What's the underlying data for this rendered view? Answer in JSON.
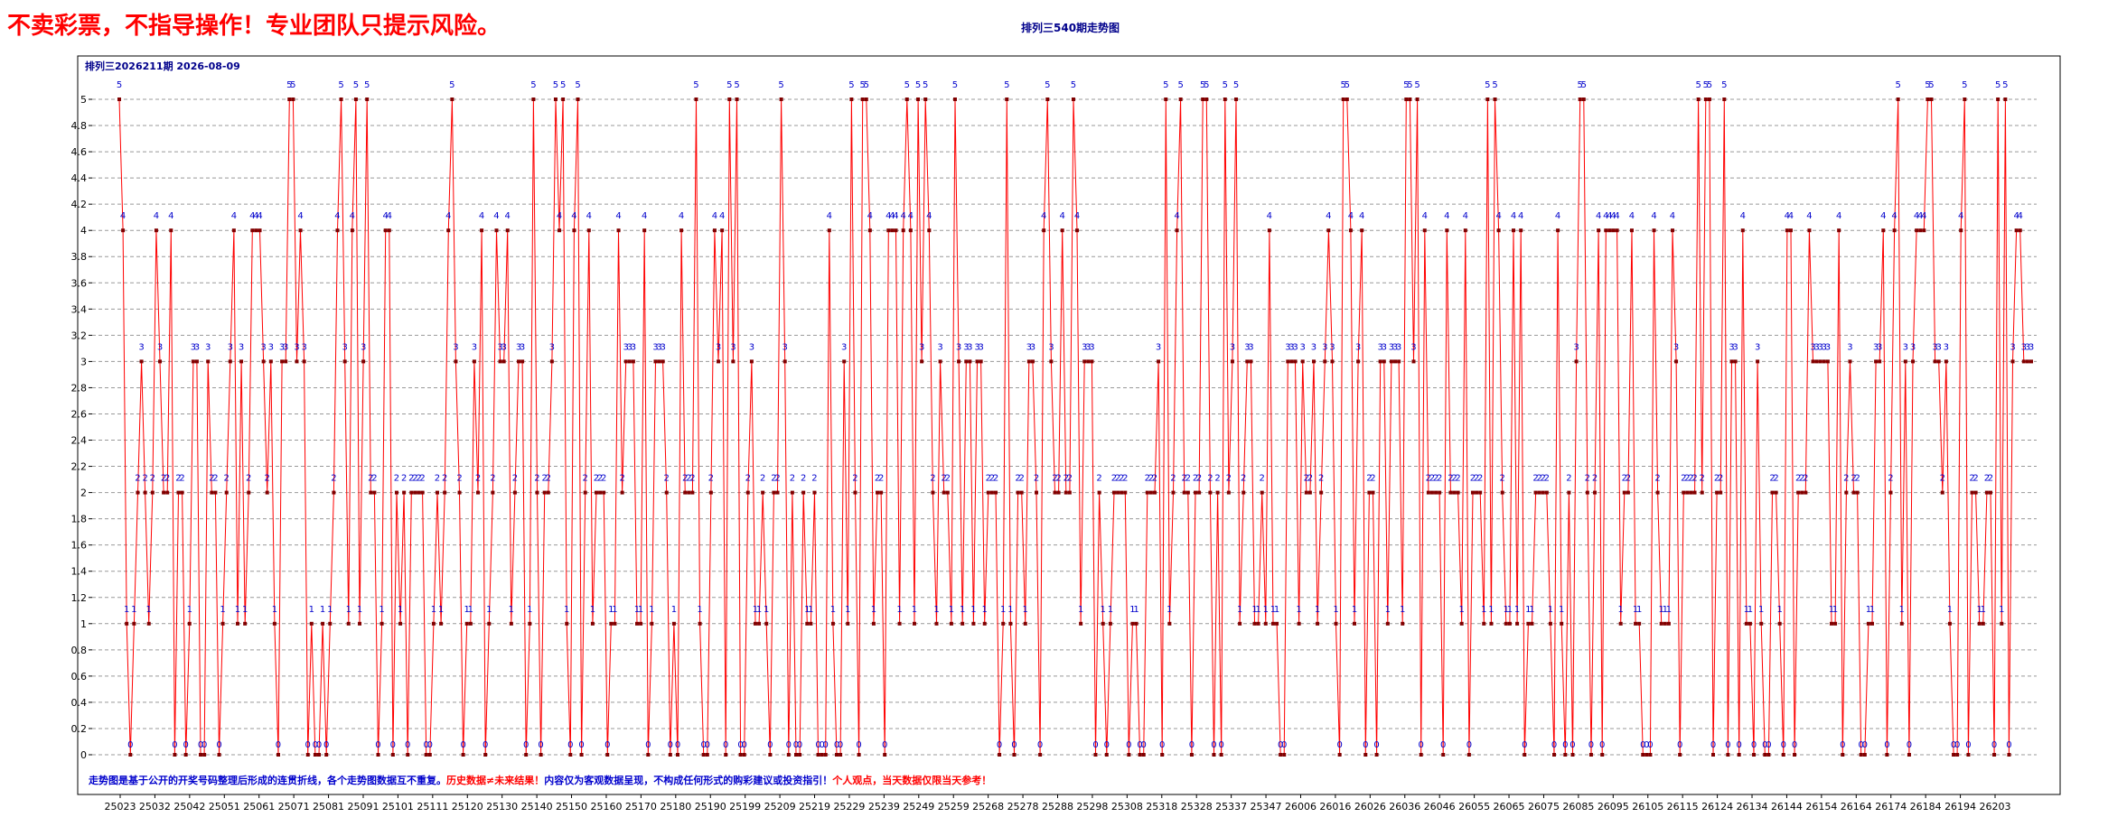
{
  "banner": "不卖彩票，不指导操作！专业团队只提示风险。",
  "chart_title": "排列三540期走势图",
  "period_label": "排列三2026211期 2026-08-09",
  "notes": [
    {
      "text": "走势图是基于公开的开奖号码整理后形成的连贯折线，各个走势图数据互不重复。",
      "color": "#0000cc"
    },
    {
      "text": "历史数据≠未来结果！",
      "color": "#ff0000"
    },
    {
      "text": "内容仅为客观数据呈现，不构成任何形式的购彩建议或投资指引！",
      "color": "#0000cc"
    },
    {
      "text": "个人观点，当天数据仅限当天参考！",
      "color": "#ff0000"
    }
  ],
  "colors": {
    "line": "#ff0000",
    "marker": "#800000",
    "label": "#0000cc",
    "grid": "#999999"
  },
  "chart_data": {
    "type": "line",
    "title": "排列三540期走势图",
    "xlabel": "",
    "ylabel": "",
    "ylim": [
      0,
      5
    ],
    "yticks": [
      "0",
      "0.2",
      "0.4",
      "0.6",
      "0.8",
      "1",
      "1.2",
      "1.4",
      "1.6",
      "1.8",
      "2",
      "2.2",
      "2.4",
      "2.6",
      "2.8",
      "3",
      "3.2",
      "3.4",
      "3.6",
      "3.8",
      "4",
      "4.2",
      "4.4",
      "4.6",
      "4.8",
      "5"
    ],
    "grid": true,
    "x_tick_labels": [
      "25023",
      "25032",
      "25042",
      "25051",
      "25061",
      "25071",
      "25081",
      "25091",
      "25101",
      "25111",
      "25120",
      "25130",
      "25140",
      "25150",
      "25160",
      "25170",
      "25180",
      "25190",
      "25199",
      "25209",
      "25219",
      "25229",
      "25239",
      "25249",
      "25259",
      "25268",
      "25278",
      "25288",
      "25298",
      "25308",
      "25318",
      "25328",
      "25337",
      "25347",
      "26006",
      "26016",
      "26026",
      "26036",
      "26046",
      "26055",
      "26065",
      "26075",
      "26085",
      "26095",
      "26105",
      "26115",
      "26124",
      "26134",
      "26144",
      "26154",
      "26164",
      "26174",
      "26184",
      "26194",
      "26203"
    ],
    "series": [
      {
        "values": [
          5,
          4,
          1,
          0,
          1,
          2,
          3,
          2,
          1,
          2,
          4,
          3,
          2,
          2,
          4,
          0,
          2,
          2,
          0,
          1,
          3,
          3,
          0,
          0,
          3,
          2,
          2,
          0,
          1,
          2,
          3,
          4,
          1,
          3,
          1,
          2,
          4,
          4,
          4,
          3,
          2,
          3,
          1,
          0,
          3,
          3,
          5,
          5,
          3,
          4,
          3,
          0,
          1,
          0,
          0,
          1,
          0,
          1,
          2,
          4,
          5,
          3,
          1,
          4,
          5,
          1,
          3,
          5,
          2,
          2,
          0,
          1,
          4,
          4,
          0,
          2,
          1,
          2,
          0,
          2,
          2,
          2,
          2,
          0,
          0,
          1,
          2,
          1,
          2,
          4,
          5,
          3,
          2,
          0,
          1,
          1,
          3,
          2,
          4,
          0,
          1,
          2,
          4,
          3,
          3,
          4,
          1,
          2,
          3,
          3,
          0,
          1,
          5,
          2,
          0,
          2,
          2,
          3,
          5,
          4,
          5,
          1,
          0,
          4,
          5,
          0,
          2,
          4,
          1,
          2,
          2,
          2,
          0,
          1,
          1,
          4,
          2,
          3,
          3,
          3,
          1,
          1,
          4,
          0,
          1,
          3,
          3,
          3,
          2,
          0,
          1,
          0,
          4,
          2,
          2,
          2,
          5,
          1,
          0,
          0,
          2,
          4,
          3,
          4,
          0,
          5,
          3,
          5,
          0,
          0,
          2,
          3,
          1,
          1,
          2,
          1,
          0,
          2,
          2,
          5,
          3,
          0,
          2,
          0,
          0,
          2,
          1,
          1,
          2,
          0,
          0,
          0,
          4,
          1,
          0,
          0,
          3,
          1,
          5,
          2,
          0,
          5,
          5,
          4,
          1,
          2,
          2,
          0,
          4,
          4,
          4,
          1,
          4,
          5,
          4,
          1,
          5,
          3,
          5,
          4,
          2,
          1,
          3,
          2,
          2,
          1,
          5,
          3,
          1,
          3,
          3,
          1,
          3,
          3,
          1,
          2,
          2,
          2,
          0,
          1,
          5,
          1,
          0,
          2,
          2,
          1,
          3,
          3,
          2,
          0,
          4,
          5,
          3,
          2,
          2,
          4,
          2,
          2,
          5,
          4,
          1,
          3,
          3,
          3,
          0,
          2,
          1,
          0,
          1,
          2,
          2,
          2,
          2,
          0,
          1,
          1,
          0,
          0,
          2,
          2,
          2,
          3,
          0,
          5,
          1,
          2,
          4,
          5,
          2,
          2,
          0,
          2,
          2,
          5,
          5,
          2,
          0,
          2,
          0,
          5,
          2,
          3,
          5,
          1,
          2,
          3,
          3,
          1,
          1,
          2,
          1,
          4,
          1,
          1,
          0,
          0,
          3,
          3,
          3,
          1,
          3,
          2,
          2,
          3,
          1,
          2,
          3,
          4,
          3,
          1,
          0,
          5,
          5,
          4,
          1,
          3,
          4,
          0,
          2,
          2,
          0,
          3,
          3,
          1,
          3,
          3,
          3,
          1,
          5,
          5,
          3,
          5,
          0,
          4,
          2,
          2,
          2,
          2,
          0,
          4,
          2,
          2,
          2,
          1,
          4,
          0,
          2,
          2,
          2,
          1,
          5,
          1,
          5,
          4,
          2,
          1,
          1,
          4,
          1,
          4,
          0,
          1,
          1,
          2,
          2,
          2,
          2,
          1,
          0,
          4,
          1,
          0,
          2,
          0,
          3,
          5,
          5,
          2,
          0,
          2,
          4,
          0,
          4,
          4,
          4,
          4,
          1,
          2,
          2,
          4,
          1,
          1,
          0,
          0,
          0,
          4,
          2,
          1,
          1,
          1,
          4,
          3,
          0,
          2,
          2,
          2,
          2,
          5,
          2,
          5,
          5,
          0,
          2,
          2,
          5,
          0,
          3,
          3,
          0,
          4,
          1,
          1,
          0,
          3,
          1,
          0,
          0,
          2,
          2,
          1,
          0,
          4,
          4,
          0,
          2,
          2,
          2,
          4,
          3,
          3,
          3,
          3,
          3,
          1,
          1,
          4,
          0,
          2,
          3,
          2,
          2,
          0,
          0,
          1,
          1,
          3,
          3,
          4,
          0,
          2,
          4,
          5,
          1,
          3,
          0,
          3,
          4,
          4,
          4,
          5,
          5,
          3,
          3,
          2,
          3,
          1,
          0,
          0,
          4,
          5,
          0,
          2,
          2,
          1,
          1,
          2,
          2,
          0,
          5,
          1,
          5,
          0,
          3,
          4,
          4,
          3,
          3,
          3
        ]
      }
    ]
  }
}
